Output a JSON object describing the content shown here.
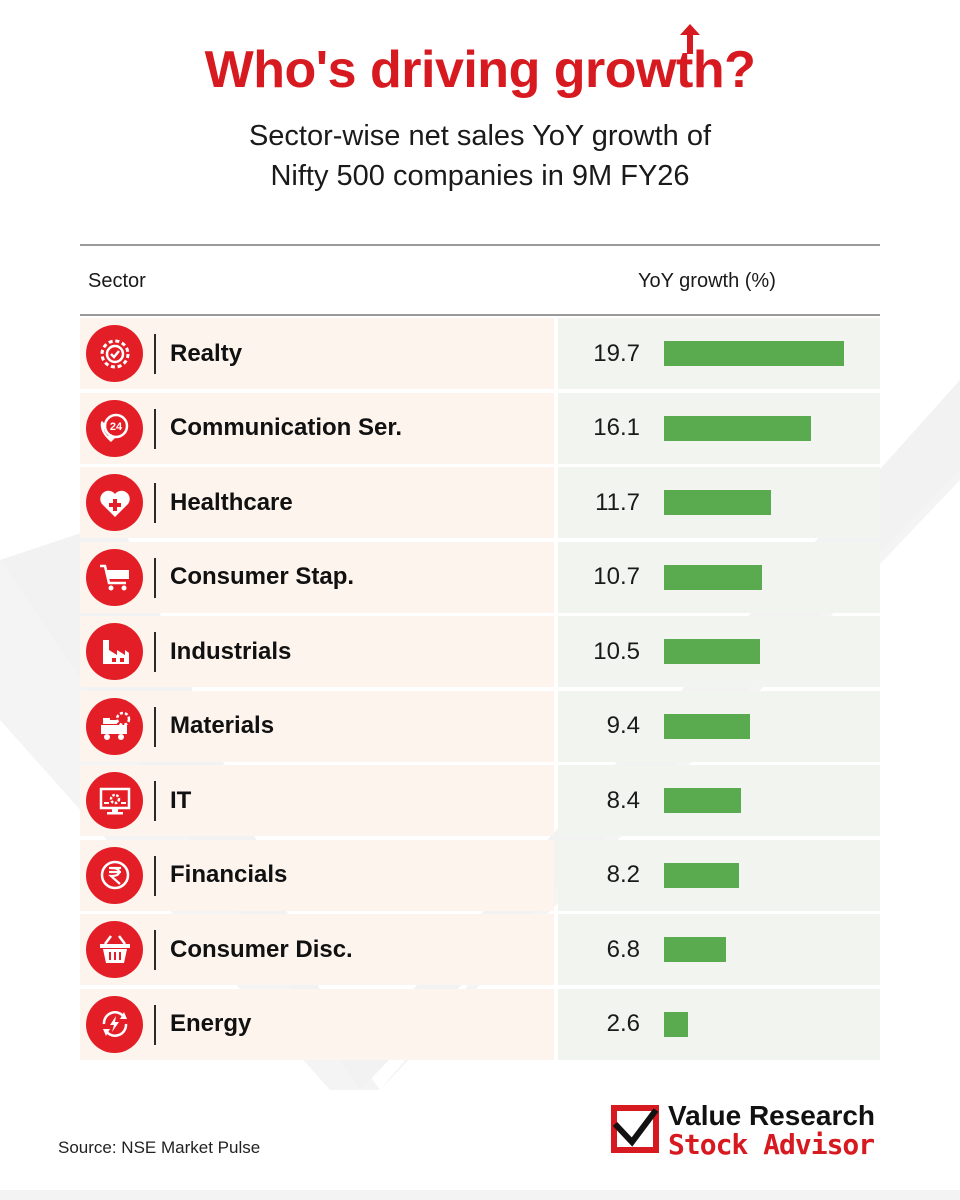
{
  "header": {
    "title": "Who's driving growth?",
    "subtitle_line1": "Sector-wise net sales YoY growth of",
    "subtitle_line2": "Nifty 500 companies in 9M FY26"
  },
  "table": {
    "col_sector": "Sector",
    "col_growth": "YoY growth (%)"
  },
  "chart_data": {
    "type": "bar",
    "orientation": "horizontal",
    "title": "Who's driving growth?",
    "subtitle": "Sector-wise net sales YoY growth of Nifty 500 companies in 9M FY26",
    "xlabel": "YoY growth (%)",
    "ylabel": "Sector",
    "categories": [
      "Realty",
      "Communication Ser.",
      "Healthcare",
      "Consumer Stap.",
      "Industrials",
      "Materials",
      "IT",
      "Financials",
      "Consumer Disc.",
      "Energy"
    ],
    "values": [
      19.7,
      16.1,
      11.7,
      10.7,
      10.5,
      9.4,
      8.4,
      8.2,
      6.8,
      2.6
    ],
    "value_labels": [
      "19.7",
      "16.1",
      "11.7",
      "10.7",
      "10.5",
      "9.4",
      "8.4",
      "8.2",
      "6.8",
      "2.6"
    ],
    "icons": [
      "gear-check-icon",
      "phone-24-icon",
      "heart-cross-icon",
      "shopping-cart-icon",
      "factory-icon",
      "mining-cart-icon",
      "monitor-gear-icon",
      "rupee-icon",
      "basket-icon",
      "energy-cycle-icon"
    ],
    "xlim": [
      0,
      19.7
    ],
    "grid": false,
    "colors": {
      "bar": "#5aab50",
      "icon_bg": "#e41e26",
      "title": "#d71920"
    }
  },
  "footer": {
    "source": "Source: NSE Market Pulse",
    "brand_line1": "Value Research",
    "brand_line2": "Stock Advisor"
  }
}
